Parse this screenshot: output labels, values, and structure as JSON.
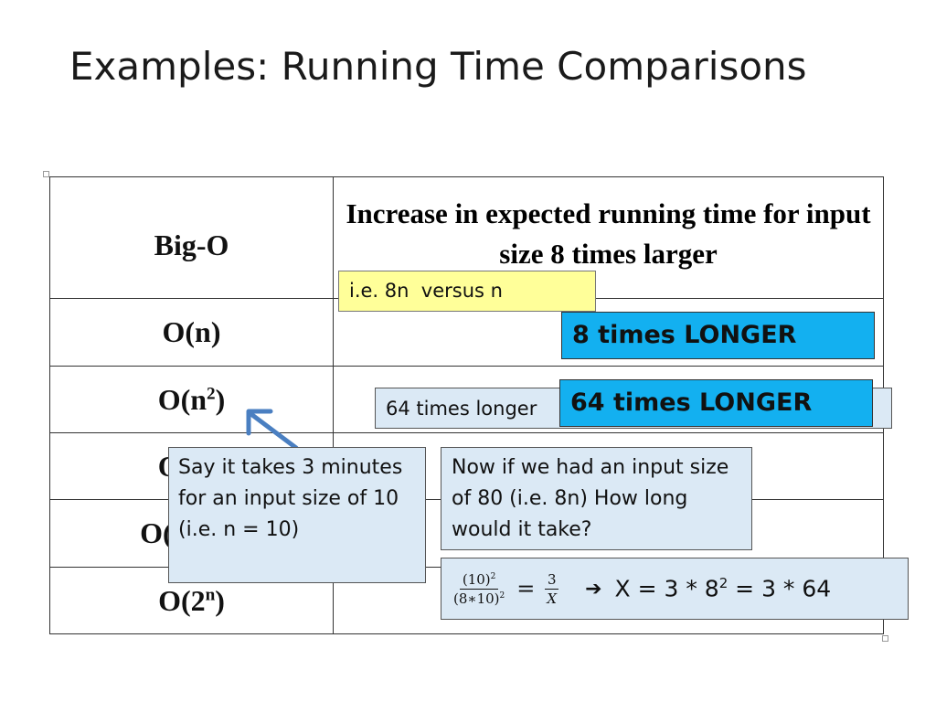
{
  "slide": {
    "title": "Examples: Running Time Comparisons"
  },
  "table": {
    "header_col1": "Big-O",
    "header_col2": "Increase in expected running time for input size 8 times larger",
    "rows": [
      {
        "base": "O(n",
        "exp": ""
      },
      {
        "base": "O(n",
        "exp": "2"
      },
      {
        "base": "O(n",
        "exp": "3"
      },
      {
        "base": "O(log n",
        "exp": ""
      },
      {
        "base": "O(2",
        "exp": "n"
      }
    ]
  },
  "callouts": {
    "example": "i.e. 8n  versus n",
    "on_result": "8 times LONGER",
    "on2_behind": "64 times longer",
    "on2_result": "64 times LONGER",
    "scenario": "Say it takes 3 minutes for an input size of 10 (i.e. n = 10)",
    "question": "Now if we had an input size of 80 (i.e. 8n) How long would it take?",
    "equation": {
      "left_num": "(10)",
      "left_num_exp": "2",
      "left_den": "(8∗10)",
      "left_den_exp": "2",
      "equals": "=",
      "right_num": "3",
      "right_den": "X",
      "arrow": "➔",
      "result_prefix": "X = 3 * 8",
      "result_exp": "2",
      "result_suffix": " = 3 * 64"
    }
  },
  "colors": {
    "yellow_note": "#ffff99",
    "highlight_cyan": "#13b0f0",
    "pale_blue": "#dbe9f5",
    "arrow_blue": "#4a7fc1"
  }
}
